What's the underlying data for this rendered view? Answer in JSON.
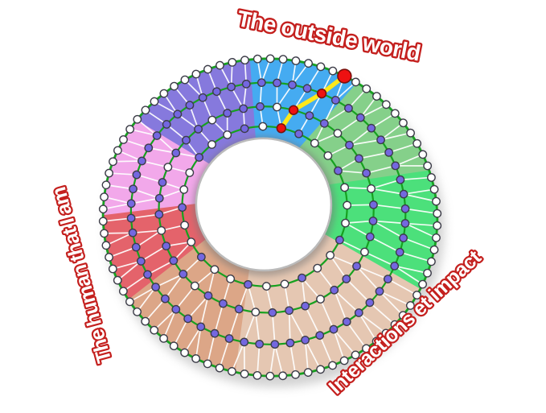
{
  "title_labels": {
    "top": "The outside world",
    "left": "The human that I am",
    "bottom_right": "Interactions et impact"
  },
  "diagram": {
    "description": "Tilted donut wheel of 8 colored sectors with 4 concentric node rings, white triangulated mesh, and a yellow highlighted radial path with red nodes",
    "colors": {
      "background": "#ffffff",
      "ring_stroke": "#16a11f",
      "mesh_line": "#ffffff",
      "node_white": "#ffffff",
      "node_purple": "#7467e0",
      "node_stroke": "#3c3c48",
      "node_red": "#ee1111",
      "node_red_stroke": "#7a100c",
      "path_yellow": "#ffe81a",
      "hole_fill": "#ffffff",
      "hole_stroke": "#bbbbbb",
      "shadow": "#8a8a8a",
      "label_fill": "#ffffff",
      "label_outline": "#c4201e"
    },
    "sectors": [
      {
        "name": "sky-blue",
        "color": "#45abf1",
        "start": 65,
        "end": 104
      },
      {
        "name": "purple",
        "color": "#8679dd",
        "start": 104,
        "end": 150
      },
      {
        "name": "pink",
        "color": "#f2a8ea",
        "start": 150,
        "end": 187
      },
      {
        "name": "red",
        "color": "#e4636b",
        "start": 187,
        "end": 219
      },
      {
        "name": "tan-dark",
        "color": "#dca687",
        "start": 219,
        "end": 265
      },
      {
        "name": "tan-light",
        "color": "#e5c7b2",
        "start": 265,
        "end": 341
      },
      {
        "name": "green-bright",
        "color": "#4ce07b",
        "start": 341,
        "end": 385
      },
      {
        "name": "green-sage",
        "color": "#85d08a",
        "start": 25,
        "end": 65
      }
    ],
    "rings": [
      {
        "t": 1.0,
        "nodes": 82,
        "phase": 0,
        "node_colors": "all-white",
        "stroke_width": 2.8
      },
      {
        "t": 0.7,
        "nodes": 56,
        "phase": 3,
        "node_colors": "all-purple",
        "stroke_width": 2.2
      },
      {
        "t": 0.4,
        "nodes": 40,
        "phase": 1,
        "node_colors": "mostly-purple",
        "stroke_width": 2.2
      },
      {
        "t": 0.15,
        "nodes": 28,
        "phase": 8,
        "node_colors": "mostly-white",
        "stroke_width": 2.2
      }
    ],
    "highlight": {
      "ring_target_angles": [
        70.5,
        74.5,
        78.5,
        82
      ],
      "outer_radius": 8.4,
      "inner_radius": 5.4,
      "node_count": 4
    }
  }
}
